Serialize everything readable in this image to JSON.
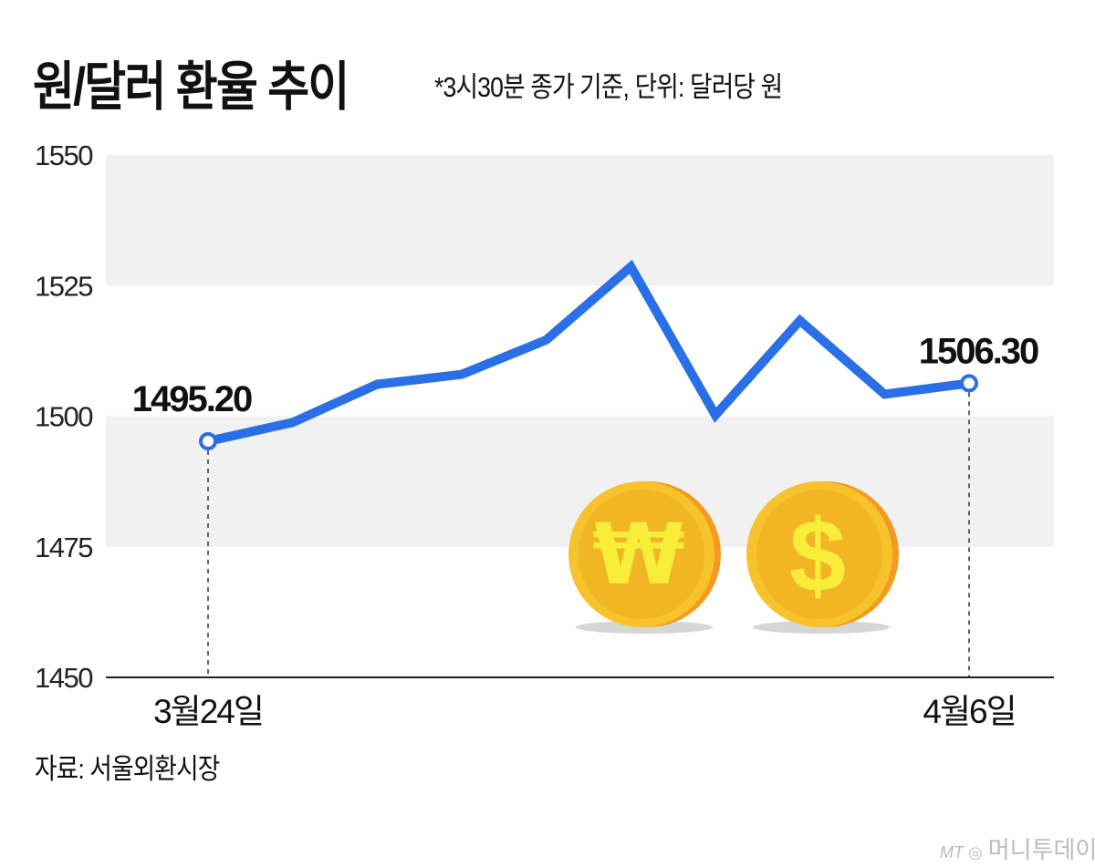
{
  "title": "원/달러 환율 추이",
  "subtitle": "*3시30분 종가 기준, 단위: 달러당 원",
  "source": "자료: 서울외환시장",
  "logo": {
    "mark": "MT",
    "text": "머니투데이"
  },
  "colors": {
    "line": "#2a6fe6",
    "band": "#f1f1f1",
    "coin": "#f4b824",
    "coin_symbol": "#f8ee3a"
  },
  "icons": [
    "won-coin-icon",
    "dollar-coin-icon"
  ],
  "chart_data": {
    "type": "line",
    "title": "원/달러 환율 추이",
    "ylim": [
      1450,
      1550
    ],
    "yticks": [
      1450,
      1475,
      1500,
      1525,
      1550
    ],
    "ytick_labels": [
      "1450",
      "1475",
      "1500",
      "1525",
      "1550"
    ],
    "categories": [
      "3월24일",
      "",
      "",
      "",
      "",
      "",
      "",
      "",
      "",
      "4월6일"
    ],
    "values": [
      1495.2,
      1498.8,
      1506.1,
      1508.0,
      1514.6,
      1528.6,
      1500.2,
      1518.3,
      1504.2,
      1506.3
    ],
    "data_labels": [
      {
        "index": 0,
        "text": "1495.20"
      },
      {
        "index": 9,
        "text": "1506.30"
      }
    ],
    "grid": "alternating horizontal bands",
    "legend": "none"
  }
}
